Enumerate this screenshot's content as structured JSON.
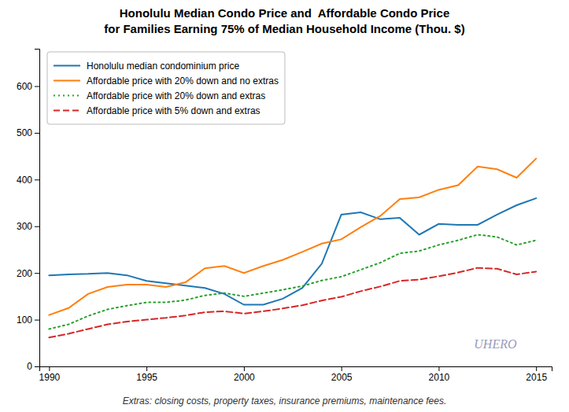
{
  "chart_data": {
    "type": "line",
    "title": "Honolulu Median Condo Price and  Affordable Condo Price",
    "subtitle": "for Families Earning 75% of Median Household Income (Thou. $)",
    "footnote": "Extras: closing costs, property taxes, insurance premiums, maintenance fees.",
    "annotations": [
      "UHERO"
    ],
    "x": [
      1990,
      1991,
      1992,
      1993,
      1994,
      1995,
      1996,
      1997,
      1998,
      1999,
      2000,
      2001,
      2002,
      2003,
      2004,
      2005,
      2006,
      2007,
      2008,
      2009,
      2010,
      2011,
      2012,
      2013,
      2014,
      2015
    ],
    "series": [
      {
        "name": "Honolulu median condominium price",
        "line_style": "solid",
        "values": [
          195,
          197,
          198,
          200,
          195,
          183,
          178,
          173,
          168,
          155,
          132,
          132,
          145,
          168,
          220,
          325,
          330,
          315,
          318,
          282,
          305,
          303,
          303,
          325,
          345,
          360
        ]
      },
      {
        "name": "Affordable price with 20% down and no extras",
        "line_style": "solid",
        "values": [
          110,
          125,
          155,
          170,
          175,
          175,
          170,
          180,
          210,
          215,
          200,
          215,
          228,
          245,
          263,
          272,
          298,
          322,
          358,
          362,
          378,
          388,
          428,
          422,
          404,
          445
        ]
      },
      {
        "name": "Affordable price with 20% down and extras",
        "line_style": "dotted",
        "values": [
          80,
          90,
          108,
          122,
          130,
          137,
          137,
          142,
          152,
          157,
          150,
          157,
          164,
          172,
          184,
          192,
          207,
          222,
          242,
          247,
          260,
          270,
          282,
          277,
          260,
          270
        ]
      },
      {
        "name": "Affordable price with 5% down and extras",
        "line_style": "dashed",
        "values": [
          62,
          70,
          80,
          90,
          96,
          100,
          104,
          109,
          116,
          118,
          113,
          118,
          124,
          131,
          141,
          149,
          161,
          171,
          183,
          186,
          193,
          201,
          211,
          209,
          197,
          203
        ]
      }
    ],
    "xlim": [
      1989.5,
      2015.8
    ],
    "xticks": [
      1990,
      1995,
      2000,
      2005,
      2010,
      2015
    ],
    "ylim": [
      0,
      680
    ],
    "yticks": [
      0,
      100,
      200,
      300,
      400,
      500,
      600
    ],
    "grid": false,
    "legend": "upper left"
  }
}
